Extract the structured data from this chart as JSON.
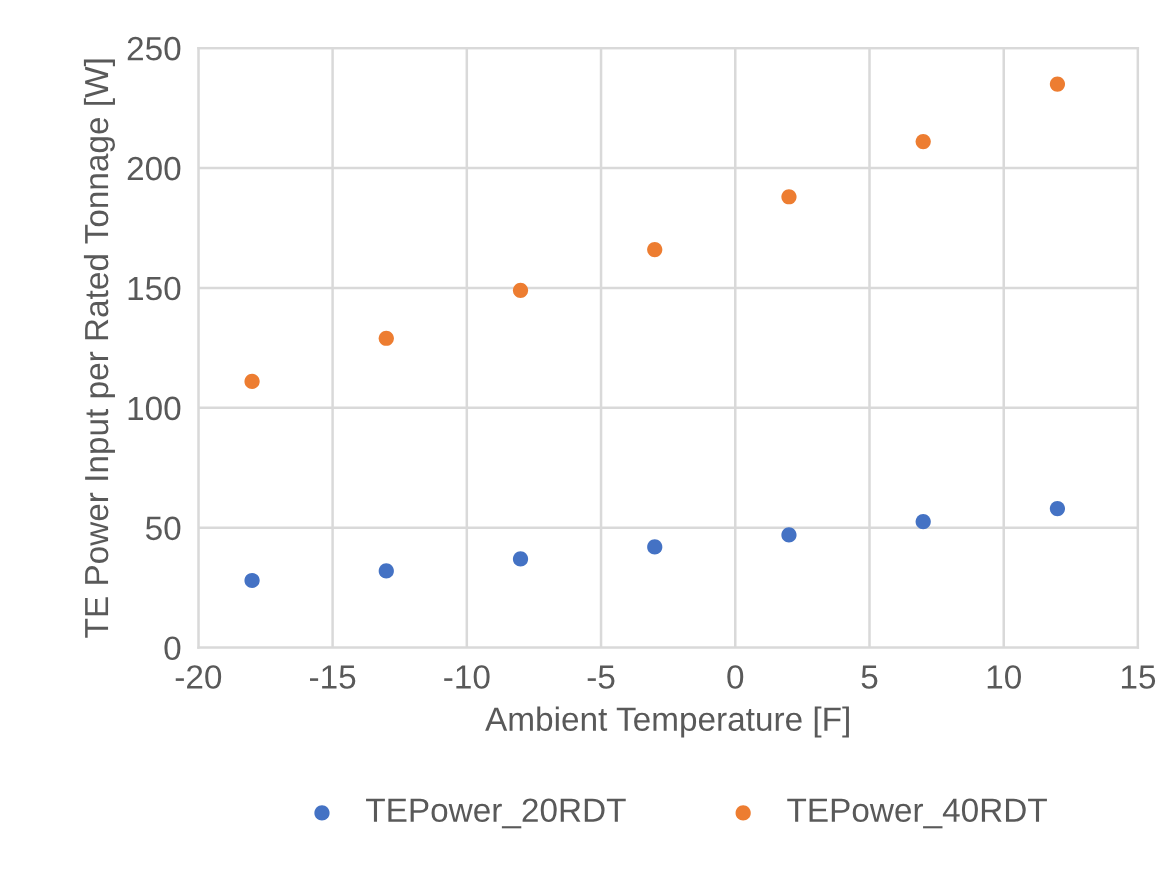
{
  "chart_data": {
    "type": "scatter",
    "xlabel": "Ambient Temperature [F]",
    "ylabel": "TE Power Input per Rated Tonnage [W]",
    "x": [
      -18,
      -13,
      -8,
      -3,
      2,
      7,
      12
    ],
    "series": [
      {
        "name": "TEPower_20RDT",
        "color": "#4472c4",
        "values": [
          28,
          32,
          37,
          42,
          47,
          52.5,
          58
        ]
      },
      {
        "name": "TEPower_40RDT",
        "color": "#ed7d31",
        "values": [
          111,
          129,
          149,
          166,
          188,
          211,
          235
        ]
      }
    ],
    "xlim": [
      -20,
      15
    ],
    "xticks": [
      -20,
      -15,
      -10,
      -5,
      0,
      5,
      10,
      15
    ],
    "ylim": [
      0,
      250
    ],
    "yticks": [
      0,
      50,
      100,
      150,
      200,
      250
    ],
    "grid": true,
    "legend": "bottom",
    "marker": "circle"
  }
}
